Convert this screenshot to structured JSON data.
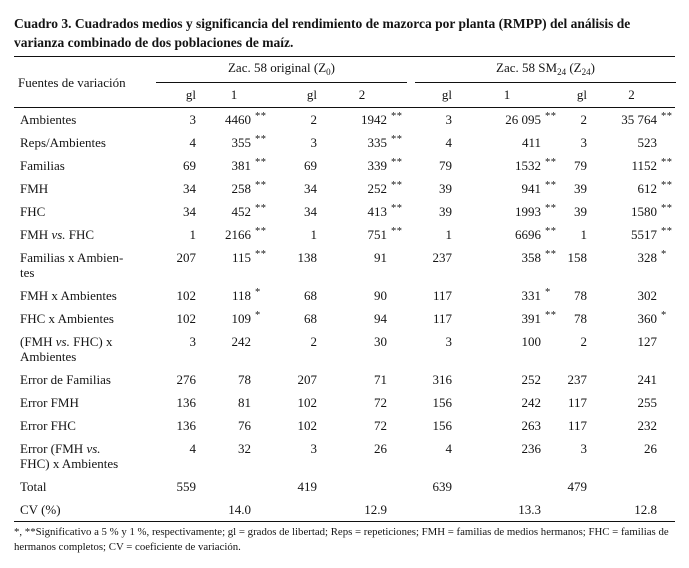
{
  "title": "Cuadro 3. Cuadrados medios y significancia del rendimiento de mazorca por planta (RMPP) del análisis de varianza combinado de dos poblaciones de maíz.",
  "table": {
    "stub_header": "Fuentes de variación",
    "group_headers": [
      {
        "name": "zac-58-original",
        "segments": [
          {
            "t": "Zac. 58 original (Z"
          },
          {
            "t": "0",
            "sub": true
          },
          {
            "t": ")"
          }
        ]
      },
      {
        "name": "zac-58-sm24",
        "segments": [
          {
            "t": "Zac. 58 SM"
          },
          {
            "t": "24",
            "sub": true
          },
          {
            "t": " (Z"
          },
          {
            "t": "24",
            "sub": true
          },
          {
            "t": ")"
          }
        ]
      }
    ],
    "sub_headers": [
      "gl",
      "1",
      "gl",
      "2",
      "gl",
      "1",
      "gl",
      "2"
    ],
    "rows": [
      {
        "label": [
          {
            "t": "Ambientes"
          }
        ],
        "cells": [
          {
            "v": "3"
          },
          {
            "v": "4460",
            "sig": "**"
          },
          {
            "v": "2"
          },
          {
            "v": "1942",
            "sig": "**"
          },
          {
            "v": "3"
          },
          {
            "v": "26 095",
            "sig": "**"
          },
          {
            "v": "2"
          },
          {
            "v": "35 764",
            "sig": "**"
          }
        ]
      },
      {
        "label": [
          {
            "t": "Reps/Ambientes"
          }
        ],
        "cells": [
          {
            "v": "4"
          },
          {
            "v": "355",
            "sig": "**"
          },
          {
            "v": "3"
          },
          {
            "v": "335",
            "sig": "**"
          },
          {
            "v": "4"
          },
          {
            "v": "411"
          },
          {
            "v": "3"
          },
          {
            "v": "523"
          }
        ]
      },
      {
        "label": [
          {
            "t": "Familias"
          }
        ],
        "cells": [
          {
            "v": "69"
          },
          {
            "v": "381",
            "sig": "**"
          },
          {
            "v": "69"
          },
          {
            "v": "339",
            "sig": "**"
          },
          {
            "v": "79"
          },
          {
            "v": "1532",
            "sig": "**"
          },
          {
            "v": "79"
          },
          {
            "v": "1152",
            "sig": "**"
          }
        ]
      },
      {
        "label": [
          {
            "t": "FMH"
          }
        ],
        "cells": [
          {
            "v": "34"
          },
          {
            "v": "258",
            "sig": "**"
          },
          {
            "v": "34"
          },
          {
            "v": "252",
            "sig": "**"
          },
          {
            "v": "39"
          },
          {
            "v": "941",
            "sig": "**"
          },
          {
            "v": "39"
          },
          {
            "v": "612",
            "sig": "**"
          }
        ]
      },
      {
        "label": [
          {
            "t": "FHC"
          }
        ],
        "cells": [
          {
            "v": "34"
          },
          {
            "v": "452",
            "sig": "**"
          },
          {
            "v": "34"
          },
          {
            "v": "413",
            "sig": "**"
          },
          {
            "v": "39"
          },
          {
            "v": "1993",
            "sig": "**"
          },
          {
            "v": "39"
          },
          {
            "v": "1580",
            "sig": "**"
          }
        ]
      },
      {
        "label": [
          {
            "t": "FMH "
          },
          {
            "t": "vs.",
            "i": true
          },
          {
            "t": " FHC"
          }
        ],
        "cells": [
          {
            "v": "1"
          },
          {
            "v": "2166",
            "sig": "**"
          },
          {
            "v": "1"
          },
          {
            "v": "751",
            "sig": "**"
          },
          {
            "v": "1"
          },
          {
            "v": "6696",
            "sig": "**"
          },
          {
            "v": "1"
          },
          {
            "v": "5517",
            "sig": "**"
          }
        ]
      },
      {
        "label": [
          {
            "t": "Familias x Ambien-"
          },
          {
            "br": true
          },
          {
            "t": "tes"
          }
        ],
        "cells": [
          {
            "v": "207"
          },
          {
            "v": "115",
            "sig": "**"
          },
          {
            "v": "138"
          },
          {
            "v": "91"
          },
          {
            "v": "237"
          },
          {
            "v": "358",
            "sig": "**"
          },
          {
            "v": "158"
          },
          {
            "v": "328",
            "sig": "*"
          }
        ]
      },
      {
        "label": [
          {
            "t": "FMH x Ambientes"
          }
        ],
        "cells": [
          {
            "v": "102"
          },
          {
            "v": "118",
            "sig": "*"
          },
          {
            "v": "68"
          },
          {
            "v": "90"
          },
          {
            "v": "117"
          },
          {
            "v": "331",
            "sig": "*"
          },
          {
            "v": "78"
          },
          {
            "v": "302"
          }
        ]
      },
      {
        "label": [
          {
            "t": "FHC x Ambientes"
          }
        ],
        "cells": [
          {
            "v": "102"
          },
          {
            "v": "109",
            "sig": "*"
          },
          {
            "v": "68"
          },
          {
            "v": "94"
          },
          {
            "v": "117"
          },
          {
            "v": "391",
            "sig": "**"
          },
          {
            "v": "78"
          },
          {
            "v": "360",
            "sig": "*"
          }
        ]
      },
      {
        "label": [
          {
            "t": "(FMH "
          },
          {
            "t": "vs.",
            "i": true
          },
          {
            "t": " FHC) x"
          },
          {
            "br": true
          },
          {
            "t": "Ambientes"
          }
        ],
        "cells": [
          {
            "v": "3"
          },
          {
            "v": "242"
          },
          {
            "v": "2"
          },
          {
            "v": "30"
          },
          {
            "v": "3"
          },
          {
            "v": "100"
          },
          {
            "v": "2"
          },
          {
            "v": "127"
          }
        ]
      },
      {
        "label": [
          {
            "t": "Error de Familias"
          }
        ],
        "cells": [
          {
            "v": "276"
          },
          {
            "v": "78"
          },
          {
            "v": "207"
          },
          {
            "v": "71"
          },
          {
            "v": "316"
          },
          {
            "v": "252"
          },
          {
            "v": "237"
          },
          {
            "v": "241"
          }
        ]
      },
      {
        "label": [
          {
            "t": "Error FMH"
          }
        ],
        "cells": [
          {
            "v": "136"
          },
          {
            "v": "81"
          },
          {
            "v": "102"
          },
          {
            "v": "72"
          },
          {
            "v": "156"
          },
          {
            "v": "242"
          },
          {
            "v": "117"
          },
          {
            "v": "255"
          }
        ]
      },
      {
        "label": [
          {
            "t": "Error FHC"
          }
        ],
        "cells": [
          {
            "v": "136"
          },
          {
            "v": "76"
          },
          {
            "v": "102"
          },
          {
            "v": "72"
          },
          {
            "v": "156"
          },
          {
            "v": "263"
          },
          {
            "v": "117"
          },
          {
            "v": "232"
          }
        ]
      },
      {
        "label": [
          {
            "t": "Error (FMH "
          },
          {
            "t": "vs.",
            "i": true
          },
          {
            "br": true
          },
          {
            "t": "FHC) x Ambientes"
          }
        ],
        "cells": [
          {
            "v": "4"
          },
          {
            "v": "32"
          },
          {
            "v": "3"
          },
          {
            "v": "26"
          },
          {
            "v": "4"
          },
          {
            "v": "236"
          },
          {
            "v": "3"
          },
          {
            "v": "26"
          }
        ]
      },
      {
        "label": [
          {
            "t": "Total"
          }
        ],
        "cells": [
          {
            "v": "559"
          },
          {
            "v": ""
          },
          {
            "v": "419"
          },
          {
            "v": ""
          },
          {
            "v": "639"
          },
          {
            "v": ""
          },
          {
            "v": "479"
          },
          {
            "v": ""
          }
        ]
      },
      {
        "label": [
          {
            "t": "CV (%)"
          }
        ],
        "cells": [
          {
            "v": ""
          },
          {
            "v": "14.0"
          },
          {
            "v": ""
          },
          {
            "v": "12.9"
          },
          {
            "v": ""
          },
          {
            "v": "13.3"
          },
          {
            "v": ""
          },
          {
            "v": "12.8"
          }
        ]
      }
    ],
    "footnote": "*, **Significativo a 5 % y 1 %, respectivamente; gl = grados de libertad; Reps = repeticiones; FMH = familias de medios hermanos; FHC = familias de hermanos completos; CV = coeficiente de variación."
  }
}
